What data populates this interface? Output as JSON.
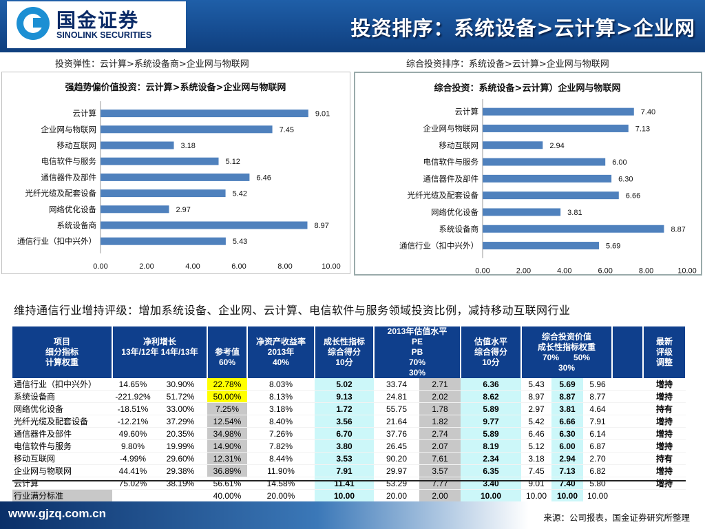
{
  "header": {
    "logo_cn": "国金证券",
    "logo_en": "SINOLINK SECURITIES",
    "title": "投资排序：系统设备>云计算>企业网"
  },
  "subtitles": {
    "left": "投资弹性：云计算>系统设备商>企业网与物联网",
    "right": "综合投资排序：系统设备>云计算>企业网与物联网"
  },
  "chart_data": [
    {
      "type": "bar",
      "orientation": "horizontal",
      "title": "强趋势偏价值投资：云计算>系统设备>企业网与物联网",
      "categories": [
        "云计算",
        "企业网与物联网",
        "移动互联网",
        "电信软件与服务",
        "通信器件及部件",
        "光纤光缆及配套设备",
        "网络优化设备",
        "系统设备商",
        "通信行业（扣中兴外）"
      ],
      "values": [
        9.01,
        7.45,
        3.18,
        5.12,
        6.46,
        5.42,
        2.97,
        8.97,
        5.43
      ],
      "value_labels": [
        "9.01",
        "7.45",
        "3.18",
        "5.12",
        "6.46",
        "5.42",
        "2.97",
        "8.97",
        "5.43"
      ],
      "xlim": [
        0,
        10
      ],
      "xticks": [
        "0.00",
        "2.00",
        "4.00",
        "6.00",
        "8.00",
        "10.00"
      ],
      "bar_color": "#4f81bd",
      "grid": false
    },
    {
      "type": "bar",
      "orientation": "horizontal",
      "title": "综合投资：系统设备>云计算）企业网与物联网",
      "categories": [
        "云计算",
        "企业网与物联网",
        "移动互联网",
        "电信软件与服务",
        "通信器件及部件",
        "光纤光缆及配套设备",
        "网络优化设备",
        "系统设备商",
        "通信行业（扣中兴外）"
      ],
      "values": [
        7.4,
        7.13,
        2.94,
        6.0,
        6.3,
        6.66,
        3.81,
        8.87,
        5.69
      ],
      "value_labels": [
        "7.40",
        "7.13",
        "2.94",
        "6.00",
        "6.30",
        "6.66",
        "3.81",
        "8.87",
        "5.69"
      ],
      "xlim": [
        0,
        10
      ],
      "xticks": [
        "0.00",
        "2.00",
        "4.00",
        "6.00",
        "8.00",
        "10.00"
      ],
      "bar_color": "#4f81bd",
      "grid": false
    }
  ],
  "summary": "维持通信行业增持评级：增加系统设备、企业网、云计算、电信软件与服务领域投资比例，减持移动互联网行业",
  "table": {
    "headers": {
      "item_line1": "项目",
      "item_line2": "细分指标",
      "item_line3": "计算权重",
      "profit_growth": "净利增长",
      "g1312": "13年/12年",
      "g1413": "14年/13年",
      "ref_line1": "参考值",
      "ref_line2": "60%",
      "roe_line1": "净资产收益率",
      "roe_line2": "2013年",
      "roe_line3": "40%",
      "growth_line1": "成长性指标",
      "growth_line2": "综合得分",
      "growth_line3": "10分",
      "val2013": "2013年估值水平",
      "pe": "PE",
      "pb": "PB",
      "pe_w": "70%",
      "pb_w": "30%",
      "val_line1": "估值水平",
      "val_line2": "综合得分",
      "val_line3": "10分",
      "comp_line1": "综合投资价值",
      "comp_line2": "成长性指标权重",
      "w70": "70%",
      "w50": "50%",
      "w30": "30%",
      "rating_line1": "最新",
      "rating_line2": "评级",
      "rating_line3": "调整"
    },
    "rows": [
      {
        "name": "通信行业（扣中兴外）",
        "g1": "14.65%",
        "g2": "30.90%",
        "ref": "22.78%",
        "roe": "8.03%",
        "gs": "5.02",
        "pe": "33.74",
        "pb": "2.71",
        "vs": "6.36",
        "c70": "5.43",
        "c50": "5.69",
        "c30": "5.96",
        "rating": "增持"
      },
      {
        "name": "系统设备商",
        "g1": "-221.92%",
        "g2": "51.72%",
        "ref": "50.00%",
        "roe": "8.13%",
        "gs": "9.13",
        "pe": "24.81",
        "pb": "2.02",
        "vs": "8.62",
        "c70": "8.97",
        "c50": "8.87",
        "c30": "8.77",
        "rating": "增持"
      },
      {
        "name": "网络优化设备",
        "g1": "-18.51%",
        "g2": "33.00%",
        "ref": "7.25%",
        "roe": "3.18%",
        "gs": "1.72",
        "pe": "55.75",
        "pb": "1.78",
        "vs": "5.89",
        "c70": "2.97",
        "c50": "3.81",
        "c30": "4.64",
        "rating": "持有"
      },
      {
        "name": "光纤光缆及配套设备",
        "g1": "-12.21%",
        "g2": "37.29%",
        "ref": "12.54%",
        "roe": "8.40%",
        "gs": "3.56",
        "pe": "21.64",
        "pb": "1.82",
        "vs": "9.77",
        "c70": "5.42",
        "c50": "6.66",
        "c30": "7.91",
        "rating": "增持"
      },
      {
        "name": "通信器件及部件",
        "g1": "49.60%",
        "g2": "20.35%",
        "ref": "34.98%",
        "roe": "7.26%",
        "gs": "6.70",
        "pe": "37.76",
        "pb": "2.74",
        "vs": "5.89",
        "c70": "6.46",
        "c50": "6.30",
        "c30": "6.14",
        "rating": "增持"
      },
      {
        "name": "电信软件与服务",
        "g1": "9.80%",
        "g2": "19.99%",
        "ref": "14.90%",
        "roe": "7.82%",
        "gs": "3.80",
        "pe": "26.45",
        "pb": "2.07",
        "vs": "8.19",
        "c70": "5.12",
        "c50": "6.00",
        "c30": "6.87",
        "rating": "增持"
      },
      {
        "name": "移动互联网",
        "g1": "-4.99%",
        "g2": "29.60%",
        "ref": "12.31%",
        "roe": "8.44%",
        "gs": "3.53",
        "pe": "90.20",
        "pb": "7.61",
        "vs": "2.34",
        "c70": "3.18",
        "c50": "2.94",
        "c30": "2.70",
        "rating": "持有"
      },
      {
        "name": "企业网与物联网",
        "g1": "44.41%",
        "g2": "29.38%",
        "ref": "36.89%",
        "roe": "11.90%",
        "gs": "7.91",
        "pe": "29.97",
        "pb": "3.57",
        "vs": "6.35",
        "c70": "7.45",
        "c50": "7.13",
        "c30": "6.82",
        "rating": "增持"
      },
      {
        "name": "云计算",
        "g1": "75.02%",
        "g2": "38.19%",
        "ref": "56.61%",
        "roe": "14.58%",
        "gs": "11.41",
        "pe": "53.29",
        "pb": "7.77",
        "vs": "3.40",
        "c70": "9.01",
        "c50": "7.40",
        "c30": "5.80",
        "rating": "增持"
      },
      {
        "name": "行业满分标准",
        "g1": "",
        "g2": "",
        "ref": "40.00%",
        "roe": "20.00%",
        "gs": "10.00",
        "pe": "20.00",
        "pb": "2.00",
        "vs": "10.00",
        "c70": "10.00",
        "c50": "10.00",
        "c30": "10.00",
        "rating": ""
      }
    ]
  },
  "footer": {
    "url": "www.gjzq.com.cn",
    "source": "来源：公司报表，国金证券研究所整理"
  },
  "colors": {
    "header_blue": "#164d92",
    "bar": "#4f81bd",
    "cyan_cell": "#ccf7f9",
    "grey_cell": "#c8c8c8",
    "highlight": "#ffff00"
  }
}
